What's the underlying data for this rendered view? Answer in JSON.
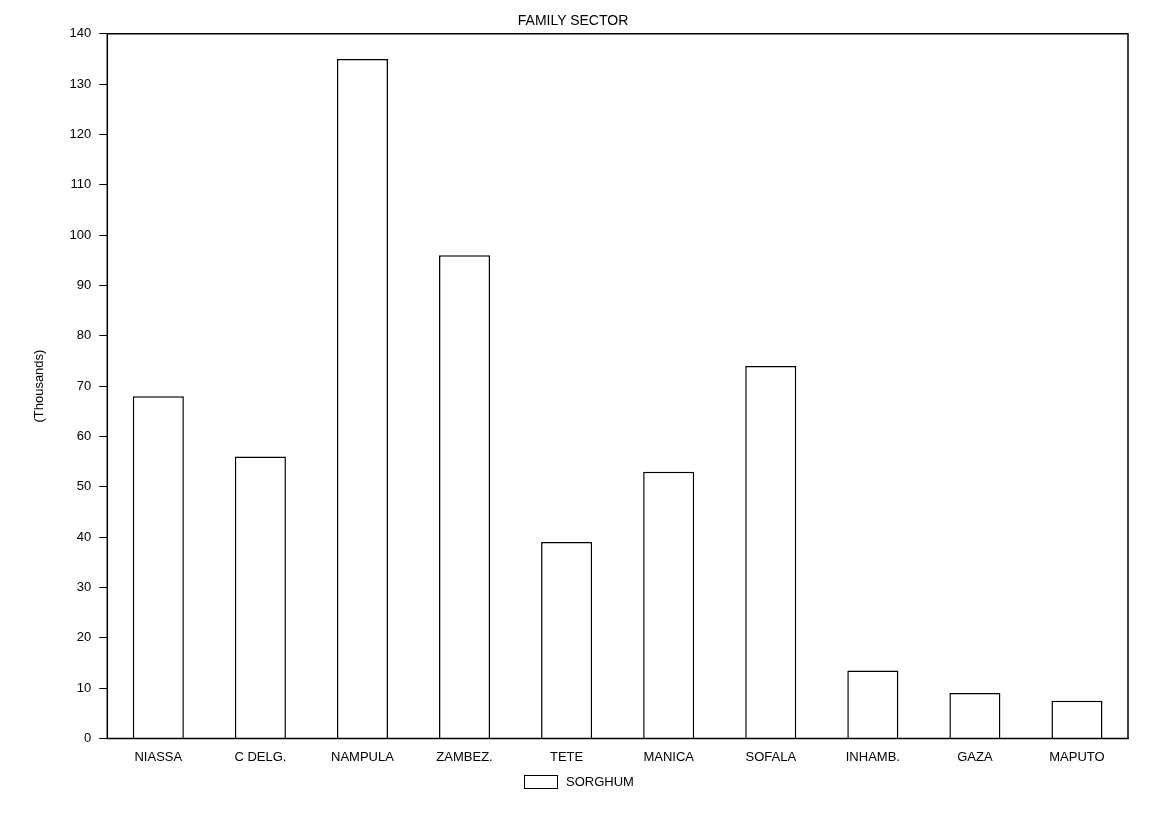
{
  "chart_data": {
    "type": "bar",
    "title": "FAMILY SECTOR",
    "ylabel": "(Thousands)",
    "categories": [
      "NIASSA",
      "C DELG.",
      "NAMPULA",
      "ZAMBEZ.",
      "TETE",
      "MANICA",
      "SOFALA",
      "INHAMB.",
      "GAZA",
      "MAPUTO"
    ],
    "series": [
      {
        "name": "SORGHUM",
        "color": "#ffffff",
        "values": [
          68,
          56,
          135,
          96,
          39,
          53,
          74,
          13.5,
          9,
          7.5
        ]
      }
    ],
    "ylim": [
      0,
      140
    ],
    "yticks": [
      0,
      10,
      20,
      30,
      40,
      50,
      60,
      70,
      80,
      90,
      100,
      110,
      120,
      130,
      140
    ],
    "grid": false,
    "legend": "bottom"
  }
}
